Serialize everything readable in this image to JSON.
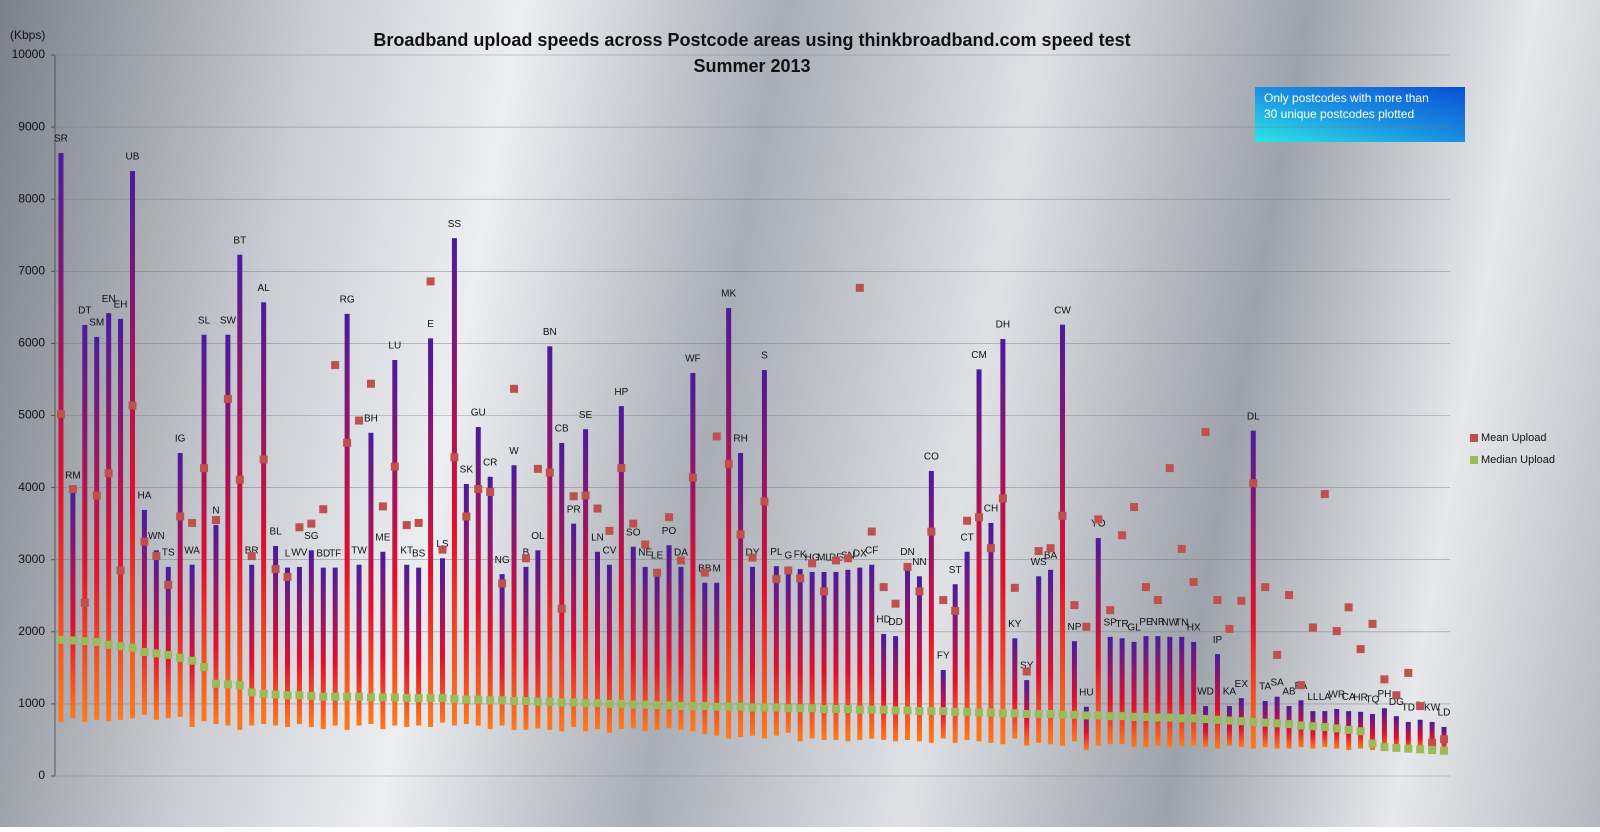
{
  "chart_data": {
    "type": "hilo",
    "title": "Broadband upload speeds across Postcode areas using thinkbroadband.com speed test",
    "subtitle": "Summer 2013",
    "y_label": "(Kbps)",
    "annotation": [
      "Only postcodes with more than",
      "30 unique postcodes plotted"
    ],
    "ylim": [
      0,
      10000
    ],
    "yticks": [
      0,
      1000,
      2000,
      3000,
      4000,
      5000,
      6000,
      7000,
      8000,
      9000,
      10000
    ],
    "grid": true,
    "legend": "right",
    "bar_colors": [
      "#4b1a9e",
      "#e3102b",
      "#ff7a1a"
    ],
    "categories": [
      "SR",
      "RM",
      "DT",
      "SM",
      "EN",
      "EH",
      "UB",
      "HA",
      "WN",
      "TS",
      "IG",
      "WA",
      "SL",
      "N",
      "SW",
      "BT",
      "BR",
      "AL",
      "BL",
      "L",
      "WV",
      "SG",
      "BD",
      "TF",
      "RG",
      "TW",
      "BH",
      "ME",
      "LU",
      "KT",
      "BS",
      "E",
      "LS",
      "SS",
      "SK",
      "GU",
      "CR",
      "NG",
      "W",
      "B",
      "OL",
      "BN",
      "CB",
      "PR",
      "SE",
      "LN",
      "CV",
      "HP",
      "SO",
      "NE",
      "LE",
      "PO",
      "DA",
      "WF",
      "BB",
      "M",
      "MK",
      "RH",
      "DY",
      "S",
      "PL",
      "G",
      "FK",
      "HG",
      "ML",
      "DE",
      "SN",
      "DX",
      "CF",
      "HD",
      "DD",
      "DN",
      "NN",
      "CO",
      "FY",
      "ST",
      "CT",
      "CM",
      "CH",
      "DH",
      "KY",
      "SY",
      "WS",
      "BA",
      "CW",
      "NP",
      "HU",
      "YO",
      "SP",
      "TR",
      "GL",
      "PE",
      "NR",
      "NW",
      "TN",
      "HX",
      "WD",
      "IP",
      "KA",
      "EX",
      "DL",
      "TA",
      "SA",
      "AB",
      "PA",
      "LL",
      "LA",
      "WR",
      "CA",
      "HR",
      "TQ",
      "PH",
      "DG",
      "TD",
      "IV",
      "KW",
      "LD"
    ],
    "high": [
      8640,
      3970,
      6255,
      6090,
      6420,
      6340,
      8390,
      3690,
      3130,
      2900,
      4480,
      2930,
      6120,
      3480,
      6120,
      7230,
      2930,
      6570,
      3190,
      2890,
      2900,
      3130,
      2890,
      2890,
      6410,
      2930,
      4760,
      3110,
      5770,
      2930,
      2890,
      6070,
      3020,
      7460,
      4050,
      4840,
      4150,
      2800,
      4310,
      2900,
      3130,
      5960,
      4620,
      3500,
      4810,
      3110,
      2930,
      5130,
      3180,
      2900,
      2860,
      3200,
      2900,
      5590,
      2680,
      2680,
      6490,
      4480,
      2900,
      5630,
      2910,
      2860,
      2870,
      2830,
      2830,
      2830,
      2860,
      2890,
      2930,
      1970,
      1940,
      2910,
      2770,
      4230,
      1470,
      2660,
      3110,
      5640,
      3510,
      6060,
      1910,
      1330,
      2770,
      2860,
      6260,
      1870,
      960,
      3300,
      1930,
      1910,
      1860,
      1940,
      1940,
      1930,
      1930,
      1860,
      970,
      1690,
      970,
      1080,
      4790,
      1040,
      1100,
      970,
      1050,
      900,
      900,
      930,
      900,
      890,
      860,
      940,
      830,
      750,
      780,
      750,
      680
    ],
    "low": [
      750,
      800,
      750,
      780,
      760,
      780,
      800,
      850,
      780,
      800,
      820,
      680,
      760,
      720,
      700,
      640,
      700,
      720,
      700,
      680,
      720,
      680,
      650,
      700,
      640,
      700,
      720,
      650,
      700,
      680,
      700,
      680,
      740,
      700,
      720,
      700,
      650,
      700,
      640,
      640,
      660,
      640,
      620,
      680,
      620,
      650,
      600,
      650,
      660,
      620,
      640,
      660,
      640,
      620,
      580,
      560,
      520,
      540,
      560,
      520,
      560,
      600,
      480,
      520,
      500,
      500,
      480,
      500,
      520,
      500,
      480,
      500,
      480,
      460,
      520,
      460,
      500,
      480,
      460,
      440,
      520,
      420,
      460,
      440,
      420,
      480,
      360,
      420,
      440,
      440,
      400,
      400,
      420,
      400,
      420,
      420,
      400,
      380,
      420,
      400,
      380,
      400,
      380,
      380,
      400,
      380,
      400,
      380,
      360,
      380,
      360,
      360,
      340,
      350,
      360,
      340,
      330
    ],
    "series": [
      {
        "name": "Mean Upload",
        "color": "#c0504d",
        "values": [
          5020,
          3980,
          2400,
          3890,
          4200,
          2850,
          5140,
          3250,
          3050,
          2650,
          3600,
          3510,
          4270,
          3550,
          5230,
          4110,
          3050,
          4390,
          2870,
          2760,
          3450,
          3500,
          3700,
          5700,
          4620,
          4930,
          5440,
          3740,
          4290,
          3480,
          3510,
          6860,
          3140,
          4420,
          3600,
          3980,
          3940,
          2670,
          5370,
          3020,
          4260,
          4210,
          2320,
          3880,
          3890,
          3710,
          3400,
          4270,
          3500,
          3210,
          2820,
          3590,
          2990,
          4140,
          2820,
          4710,
          4330,
          3350,
          3030,
          3810,
          2730,
          2850,
          2740,
          2950,
          2560,
          2990,
          3020,
          6770,
          3390,
          2620,
          2390,
          2900,
          2560,
          3390,
          2440,
          2290,
          3540,
          3590,
          3160,
          3850,
          2610,
          1450,
          3120,
          3160,
          3610,
          2370,
          2070,
          3560,
          2300,
          3340,
          3730,
          2620,
          2440,
          4270,
          3150,
          2690,
          4770,
          2440,
          2040,
          2430,
          4060,
          2620,
          1680,
          2510,
          1260,
          2060,
          3910,
          2010,
          2340,
          1760,
          2110,
          1340,
          1120,
          1430,
          970,
          460,
          510
        ]
      },
      {
        "name": "Median Upload",
        "color": "#9bbb59",
        "values": [
          1890,
          1880,
          1870,
          1860,
          1820,
          1800,
          1780,
          1720,
          1700,
          1680,
          1640,
          1600,
          1510,
          1280,
          1270,
          1260,
          1160,
          1140,
          1130,
          1120,
          1120,
          1110,
          1100,
          1100,
          1100,
          1100,
          1090,
          1090,
          1090,
          1080,
          1080,
          1080,
          1080,
          1070,
          1060,
          1060,
          1050,
          1050,
          1040,
          1040,
          1030,
          1030,
          1020,
          1020,
          1010,
          1010,
          1000,
          1000,
          990,
          990,
          980,
          980,
          970,
          970,
          970,
          960,
          960,
          960,
          950,
          950,
          950,
          940,
          940,
          940,
          930,
          930,
          930,
          920,
          920,
          920,
          910,
          910,
          900,
          900,
          900,
          890,
          890,
          880,
          880,
          870,
          870,
          860,
          860,
          860,
          850,
          850,
          840,
          840,
          830,
          830,
          820,
          820,
          810,
          810,
          800,
          800,
          790,
          780,
          770,
          760,
          750,
          740,
          730,
          720,
          700,
          690,
          680,
          660,
          640,
          620,
          450,
          400,
          390,
          380,
          370,
          360,
          350
        ]
      }
    ]
  }
}
